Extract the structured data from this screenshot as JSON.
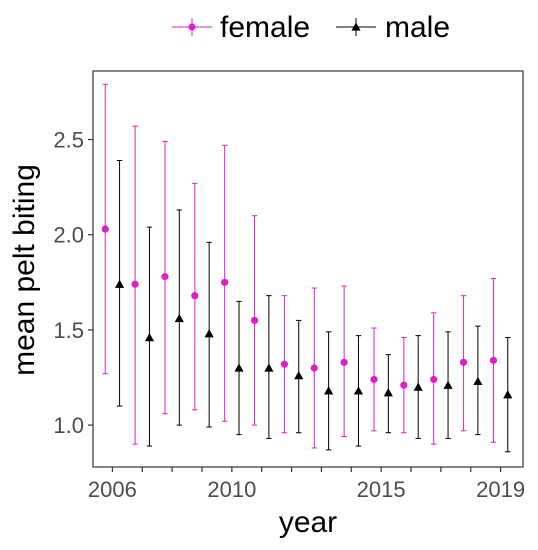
{
  "chart_data": {
    "type": "scatter",
    "title": "",
    "xlabel": "year",
    "ylabel": "mean pelt biting",
    "xlim": [
      2005.35,
      2019.75
    ],
    "ylim": [
      0.78,
      2.86
    ],
    "x_ticks": [
      2006,
      2010,
      2015,
      2019
    ],
    "x_tick_labels": [
      "2006",
      "2010",
      "2015",
      "2019"
    ],
    "y_ticks": [
      1.0,
      1.5,
      2.0,
      2.5
    ],
    "y_tick_labels": [
      "1.0",
      "1.5",
      "2.0",
      "2.5"
    ],
    "grid": false,
    "legend_position": "top",
    "series": [
      {
        "name": "female",
        "color": "#dd1fc7",
        "marker": "circle",
        "x": [
          2006,
          2007,
          2008,
          2009,
          2010,
          2011,
          2012,
          2013,
          2014,
          2015,
          2016,
          2017,
          2018,
          2019
        ],
        "y": [
          2.03,
          1.74,
          1.78,
          1.68,
          1.75,
          1.55,
          1.32,
          1.3,
          1.33,
          1.24,
          1.21,
          1.24,
          1.33,
          1.34
        ],
        "lower": [
          1.27,
          0.9,
          1.06,
          1.08,
          1.02,
          1.0,
          0.96,
          0.88,
          0.94,
          0.97,
          0.96,
          0.9,
          0.97,
          0.91
        ],
        "upper": [
          2.79,
          2.57,
          2.49,
          2.27,
          2.47,
          2.1,
          1.68,
          1.72,
          1.73,
          1.51,
          1.46,
          1.59,
          1.68,
          1.77
        ]
      },
      {
        "name": "male",
        "color": "#000000",
        "marker": "triangle",
        "x": [
          2006,
          2007,
          2008,
          2009,
          2010,
          2011,
          2012,
          2013,
          2014,
          2015,
          2016,
          2017,
          2018,
          2019
        ],
        "y": [
          1.74,
          1.46,
          1.56,
          1.48,
          1.3,
          1.3,
          1.26,
          1.18,
          1.18,
          1.17,
          1.2,
          1.21,
          1.23,
          1.16
        ],
        "lower": [
          1.1,
          0.89,
          1.0,
          0.99,
          0.95,
          0.93,
          0.96,
          0.87,
          0.89,
          0.96,
          0.93,
          0.93,
          0.95,
          0.86
        ],
        "upper": [
          2.39,
          2.04,
          2.13,
          1.96,
          1.65,
          1.68,
          1.55,
          1.49,
          1.47,
          1.37,
          1.47,
          1.49,
          1.52,
          1.46
        ]
      }
    ]
  }
}
